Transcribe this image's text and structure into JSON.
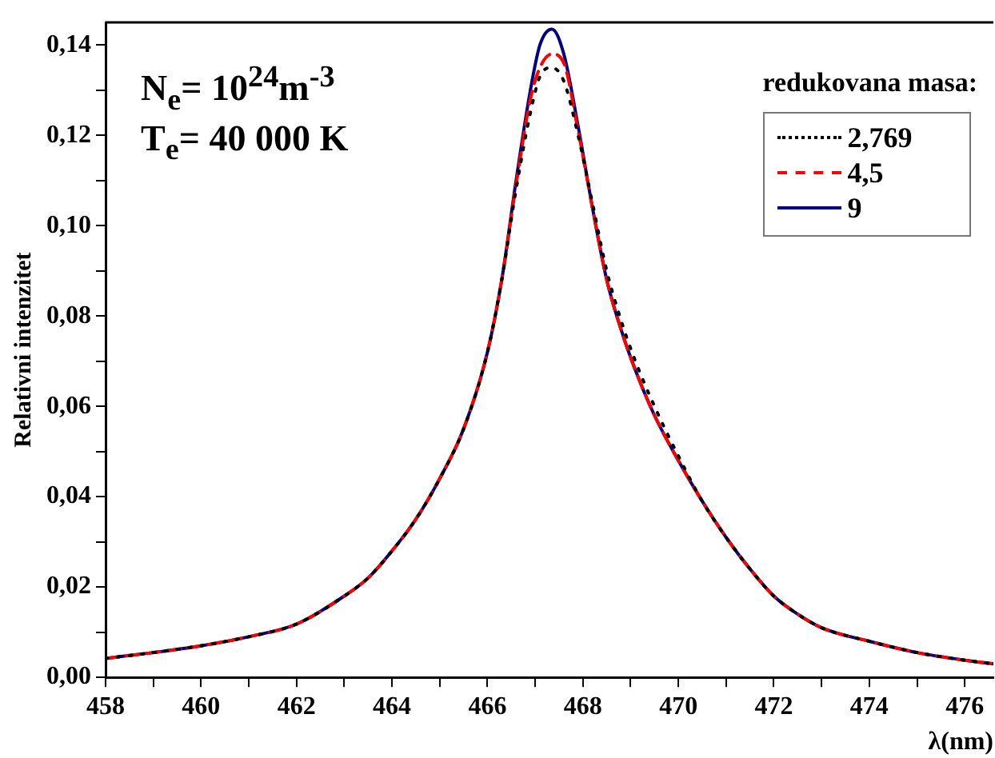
{
  "chart_data": {
    "type": "line",
    "xlabel": "λ(nm)",
    "ylabel": "Relativni intenzitet",
    "legend_title": "redukovana masa:",
    "legend": "top right",
    "marker": "none",
    "annotations": [
      "N$_{e}$= 10$^{24}$m$^{-3}$",
      "T$_{e}$= 40 000 K"
    ],
    "xlim": [
      458,
      476.6
    ],
    "xticks": [
      458,
      {
        "value": 459,
        "label": null
      },
      460,
      {
        "value": 461,
        "label": null
      },
      462,
      {
        "value": 463,
        "label": null
      },
      464,
      {
        "value": 465,
        "label": null
      },
      466,
      {
        "value": 467,
        "label": null
      },
      468,
      {
        "value": 469,
        "label": null
      },
      470,
      {
        "value": 471,
        "label": null
      },
      472,
      {
        "value": 473,
        "label": null
      },
      474,
      {
        "value": 475,
        "label": null
      },
      476
    ],
    "ylim": [
      0,
      0.145
    ],
    "yticks": [
      {
        "value": 0,
        "label": "0,00"
      },
      {
        "value": 0.01,
        "label": null
      },
      {
        "value": 0.02,
        "label": "0,02"
      },
      {
        "value": 0.03,
        "label": null
      },
      {
        "value": 0.04,
        "label": "0,04"
      },
      {
        "value": 0.05,
        "label": null
      },
      {
        "value": 0.06,
        "label": "0,06"
      },
      {
        "value": 0.07,
        "label": null
      },
      {
        "value": 0.08,
        "label": "0,08"
      },
      {
        "value": 0.09,
        "label": null
      },
      {
        "value": 0.1,
        "label": "0,10"
      },
      {
        "value": 0.11,
        "label": null
      },
      {
        "value": 0.12,
        "label": "0,12"
      },
      {
        "value": 0.13,
        "label": null
      },
      {
        "value": 0.14,
        "label": "0,14"
      }
    ],
    "x": [
      458,
      459,
      460,
      461,
      462,
      463,
      463.5,
      464,
      464.5,
      465,
      465.5,
      466,
      466.3,
      466.6,
      466.9,
      467.1,
      467.35,
      467.6,
      467.9,
      468.2,
      468.5,
      468.8,
      469.1,
      469.5,
      470,
      470.5,
      471,
      471.5,
      472,
      472.5,
      473,
      474,
      475,
      476,
      476.6
    ],
    "series": [
      {
        "name": "2,769",
        "color": "#000000",
        "line_style": "dotted",
        "values": [
          0.0042,
          0.0055,
          0.007,
          0.009,
          0.0118,
          0.018,
          0.022,
          0.028,
          0.035,
          0.044,
          0.055,
          0.072,
          0.088,
          0.108,
          0.125,
          0.133,
          0.135,
          0.132,
          0.12,
          0.105,
          0.09,
          0.079,
          0.07,
          0.06,
          0.049,
          0.039,
          0.031,
          0.024,
          0.018,
          0.014,
          0.011,
          0.008,
          0.0055,
          0.0038,
          0.003
        ]
      },
      {
        "name": "4,5",
        "color": "#ff0000",
        "line_style": "dashed",
        "values": [
          0.0042,
          0.0055,
          0.007,
          0.009,
          0.0118,
          0.018,
          0.022,
          0.028,
          0.035,
          0.044,
          0.055,
          0.072,
          0.088,
          0.109,
          0.128,
          0.135,
          0.138,
          0.136,
          0.121,
          0.104,
          0.088,
          0.077,
          0.068,
          0.058,
          0.048,
          0.039,
          0.031,
          0.024,
          0.018,
          0.014,
          0.011,
          0.008,
          0.0055,
          0.0038,
          0.003
        ]
      },
      {
        "name": "9",
        "color": "#000080",
        "line_style": "solid",
        "values": [
          0.0042,
          0.0055,
          0.007,
          0.009,
          0.0118,
          0.018,
          0.022,
          0.028,
          0.035,
          0.044,
          0.055,
          0.072,
          0.088,
          0.11,
          0.13,
          0.14,
          0.1435,
          0.138,
          0.122,
          0.104,
          0.088,
          0.077,
          0.068,
          0.058,
          0.048,
          0.039,
          0.031,
          0.024,
          0.018,
          0.014,
          0.011,
          0.008,
          0.0055,
          0.0038,
          0.003
        ]
      }
    ]
  }
}
